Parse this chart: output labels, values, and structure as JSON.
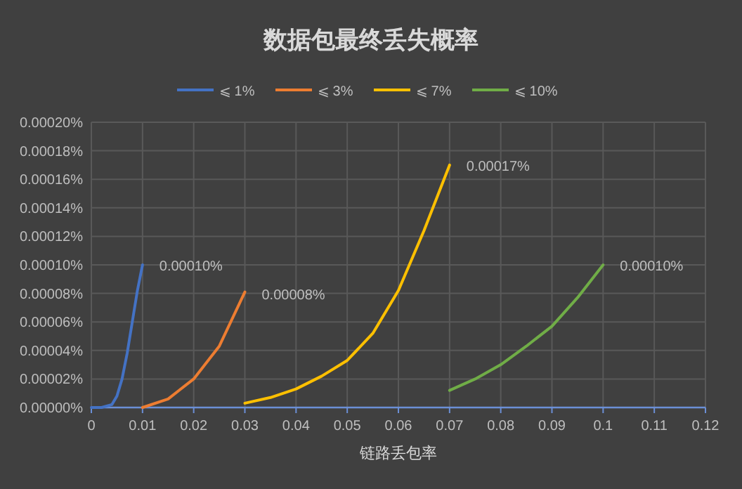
{
  "chart_data": {
    "type": "line",
    "title": "数据包最终丢失概率",
    "xlabel": "链路丢包率",
    "xlim": [
      0,
      0.12
    ],
    "xticks": [
      0,
      0.01,
      0.02,
      0.03,
      0.04,
      0.05,
      0.06,
      0.07,
      0.08,
      0.09,
      0.1,
      0.11,
      0.12
    ],
    "ylim": [
      0,
      0.0002
    ],
    "yticks": [
      {
        "value": 0,
        "label": "0.00000%"
      },
      {
        "value": 2e-05,
        "label": "0.00002%"
      },
      {
        "value": 4e-05,
        "label": "0.00004%"
      },
      {
        "value": 6e-05,
        "label": "0.00006%"
      },
      {
        "value": 8e-05,
        "label": "0.00008%"
      },
      {
        "value": 0.0001,
        "label": "0.00010%"
      },
      {
        "value": 0.00012,
        "label": "0.00012%"
      },
      {
        "value": 0.00014,
        "label": "0.00014%"
      },
      {
        "value": 0.00016,
        "label": "0.00016%"
      },
      {
        "value": 0.00018,
        "label": "0.00018%"
      },
      {
        "value": 0.0002,
        "label": "0.00020%"
      }
    ],
    "grid": true,
    "legend": "top",
    "marker": "none",
    "line_style": "solid",
    "series": [
      {
        "name": "⩽ 1%",
        "color": "#4472c4",
        "x": [
          0,
          0.002,
          0.004,
          0.005,
          0.006,
          0.007,
          0.008,
          0.009,
          0.01
        ],
        "values": [
          0,
          0,
          2e-06,
          8e-06,
          2e-05,
          3.8e-05,
          6e-05,
          8.2e-05,
          0.0001
        ]
      },
      {
        "name": "⩽ 3%",
        "color": "#ed7d31",
        "x": [
          0.01,
          0.015,
          0.02,
          0.025,
          0.03
        ],
        "values": [
          0,
          6e-06,
          2e-05,
          4.3e-05,
          8.1e-05
        ]
      },
      {
        "name": "⩽ 7%",
        "color": "#ffc000",
        "x": [
          0.03,
          0.035,
          0.04,
          0.045,
          0.05,
          0.055,
          0.06,
          0.065,
          0.07
        ],
        "values": [
          3e-06,
          7e-06,
          1.3e-05,
          2.2e-05,
          3.3e-05,
          5.2e-05,
          8.2e-05,
          0.000124,
          0.00017
        ]
      },
      {
        "name": "⩽ 10%",
        "color": "#70ad47",
        "x": [
          0.07,
          0.075,
          0.08,
          0.085,
          0.09,
          0.095,
          0.1
        ],
        "values": [
          1.2e-05,
          2e-05,
          3e-05,
          4.3e-05,
          5.7e-05,
          7.7e-05,
          0.0001
        ]
      }
    ],
    "annotations": [
      {
        "text": "0.00010%",
        "x": 0.01,
        "y": 0.0001
      },
      {
        "text": "0.00008%",
        "x": 0.03,
        "y": 8e-05
      },
      {
        "text": "0.00017%",
        "x": 0.07,
        "y": 0.00017
      },
      {
        "text": "0.00010%",
        "x": 0.1,
        "y": 0.0001
      }
    ]
  }
}
